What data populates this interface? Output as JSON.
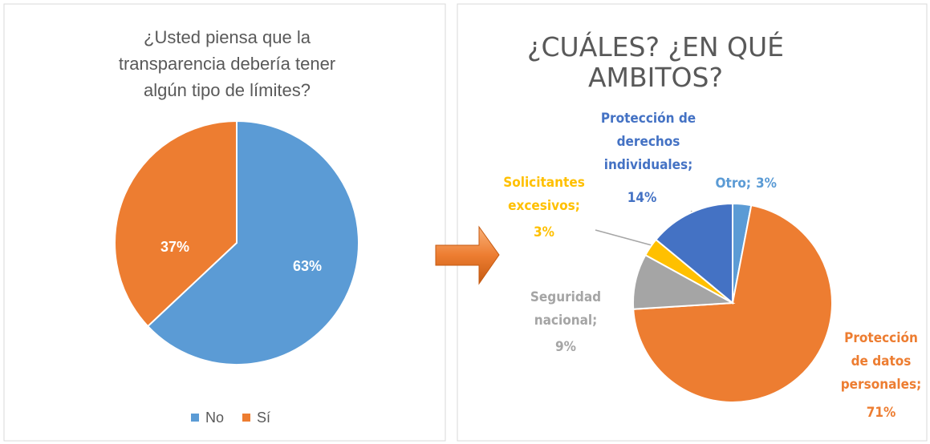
{
  "chart_data": [
    {
      "type": "pie",
      "title": "¿Usted piensa que la transparencia debería tener algún tipo de límites?",
      "categories": [
        "No",
        "Sí"
      ],
      "values": [
        63,
        37
      ],
      "value_labels": [
        "63%",
        "37%"
      ],
      "colors": [
        "#5b9bd5",
        "#ed7d31"
      ],
      "legend": "bottom"
    },
    {
      "type": "pie",
      "title": "¿CUÁLES? ¿EN QUÉ AMBITOS?",
      "categories": [
        "Otro;",
        "Protección de datos personales;",
        "Seguridad nacional;",
        "Solicitantes excesivos;",
        "Protección de derechos individuales;"
      ],
      "values": [
        3,
        71,
        9,
        3,
        14
      ],
      "value_labels": [
        "3%",
        "71%",
        "9%",
        "3%",
        "14%"
      ],
      "colors": [
        "#5b9bd5",
        "#ed7d31",
        "#a5a5a5",
        "#ffc000",
        "#4472c4"
      ]
    }
  ]
}
